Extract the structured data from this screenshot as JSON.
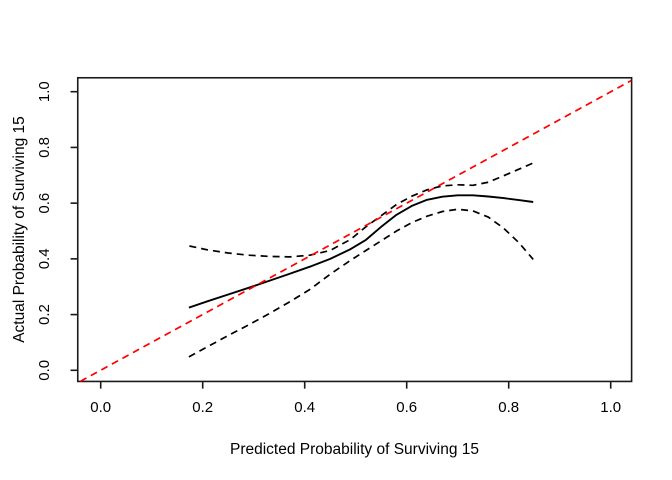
{
  "chart_data": {
    "type": "line",
    "title": "",
    "xlabel": "Predicted Probability of Surviving 15",
    "ylabel": "Actual Probability of Surviving 15",
    "xlim": [
      -0.045,
      1.041
    ],
    "ylim": [
      -0.04,
      1.05
    ],
    "grid": false,
    "legend_position": "none",
    "x_ticks": [
      0.0,
      0.2,
      0.4,
      0.6,
      0.8,
      1.0
    ],
    "x_tick_labels": [
      "0.0",
      "0.2",
      "0.4",
      "0.6",
      "0.8",
      "1.0"
    ],
    "y_ticks": [
      0.0,
      0.2,
      0.4,
      0.6,
      0.8,
      1.0
    ],
    "y_tick_labels": [
      "0.0",
      "0.2",
      "0.4",
      "0.6",
      "0.8",
      "1.0"
    ],
    "colors": {
      "ideal_line": "#ff0000",
      "curves": "#000000",
      "frame": "#1a1a1a"
    },
    "series": [
      {
        "name": "calibration-curve",
        "role": "bias-corrected calibration",
        "style": "solid",
        "color": "#000000",
        "x": [
          0.173,
          0.21,
          0.25,
          0.29,
          0.33,
          0.37,
          0.41,
          0.45,
          0.49,
          0.52,
          0.55,
          0.58,
          0.61,
          0.64,
          0.67,
          0.7,
          0.73,
          0.76,
          0.79,
          0.82,
          0.848
        ],
        "y": [
          0.225,
          0.248,
          0.272,
          0.296,
          0.321,
          0.346,
          0.372,
          0.4,
          0.435,
          0.468,
          0.515,
          0.558,
          0.59,
          0.612,
          0.623,
          0.628,
          0.628,
          0.624,
          0.618,
          0.611,
          0.604
        ]
      },
      {
        "name": "upper-confidence-band",
        "role": "upper confidence limit",
        "style": "dashed",
        "color": "#000000",
        "x": [
          0.174,
          0.21,
          0.25,
          0.29,
          0.33,
          0.37,
          0.41,
          0.45,
          0.49,
          0.52,
          0.55,
          0.58,
          0.61,
          0.64,
          0.67,
          0.7,
          0.73,
          0.76,
          0.79,
          0.82,
          0.848
        ],
        "y": [
          0.446,
          0.432,
          0.421,
          0.413,
          0.409,
          0.407,
          0.413,
          0.43,
          0.47,
          0.515,
          0.555,
          0.595,
          0.625,
          0.648,
          0.662,
          0.666,
          0.664,
          0.675,
          0.698,
          0.722,
          0.744
        ]
      },
      {
        "name": "lower-confidence-band",
        "role": "lower confidence limit",
        "style": "dashed",
        "color": "#000000",
        "x": [
          0.173,
          0.21,
          0.25,
          0.29,
          0.33,
          0.37,
          0.41,
          0.45,
          0.49,
          0.52,
          0.55,
          0.58,
          0.61,
          0.64,
          0.67,
          0.7,
          0.73,
          0.76,
          0.79,
          0.82,
          0.848
        ],
        "y": [
          0.048,
          0.085,
          0.125,
          0.163,
          0.203,
          0.245,
          0.29,
          0.345,
          0.395,
          0.43,
          0.465,
          0.5,
          0.53,
          0.553,
          0.57,
          0.578,
          0.572,
          0.55,
          0.51,
          0.458,
          0.398
        ]
      },
      {
        "name": "ideal-line",
        "role": "ideal 45-degree reference",
        "style": "dashed",
        "color": "#ff0000",
        "x": [
          -0.04,
          1.04
        ],
        "y": [
          -0.04,
          1.04
        ]
      }
    ]
  }
}
